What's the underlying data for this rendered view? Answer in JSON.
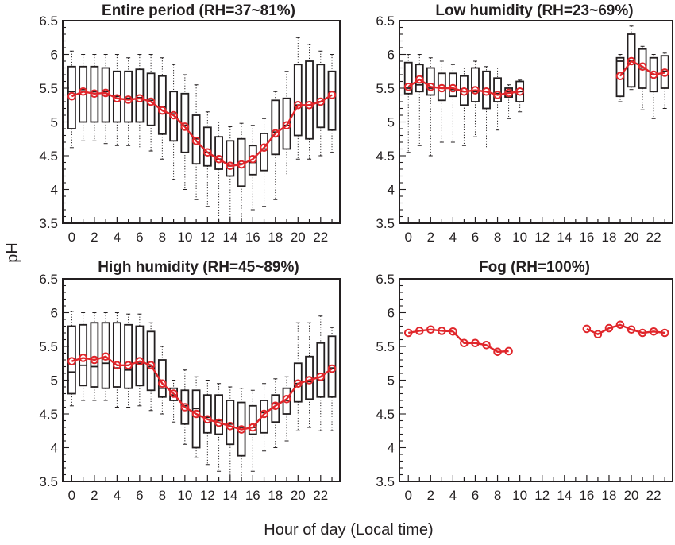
{
  "figure": {
    "ylabel": "pH",
    "xlabel": "Hour of day (Local time)"
  },
  "chart_data": [
    {
      "type": "box",
      "title": "Entire period (RH=37~81%)",
      "x_ticks": [
        "0",
        "2",
        "4",
        "6",
        "8",
        "10",
        "12",
        "14",
        "16",
        "18",
        "20",
        "22"
      ],
      "y_ticks": [
        "3.5",
        "4",
        "4.5",
        "5",
        "5.5",
        "6",
        "6.5"
      ],
      "xlim": [
        -0.8,
        23.7
      ],
      "ylim": [
        3.5,
        6.5
      ],
      "hours": [
        0,
        1,
        2,
        3,
        4,
        5,
        6,
        7,
        8,
        9,
        10,
        11,
        12,
        13,
        14,
        15,
        16,
        17,
        18,
        19,
        20,
        21,
        22,
        23
      ],
      "mean": [
        5.38,
        5.45,
        5.42,
        5.43,
        5.35,
        5.33,
        5.35,
        5.3,
        5.17,
        5.1,
        4.93,
        4.72,
        4.55,
        4.45,
        4.35,
        4.37,
        4.45,
        4.62,
        4.83,
        4.95,
        5.25,
        5.25,
        5.3,
        5.4
      ],
      "q1": [
        4.9,
        5.0,
        5.0,
        5.0,
        5.0,
        5.0,
        5.0,
        4.95,
        4.82,
        4.72,
        4.55,
        4.38,
        4.35,
        4.3,
        4.2,
        4.05,
        4.22,
        4.28,
        4.52,
        4.6,
        4.8,
        4.75,
        4.92,
        4.88
      ],
      "q3": [
        5.82,
        5.82,
        5.82,
        5.8,
        5.75,
        5.75,
        5.78,
        5.72,
        5.68,
        5.45,
        5.42,
        5.1,
        4.92,
        4.78,
        4.72,
        4.75,
        4.65,
        4.83,
        5.32,
        5.35,
        5.85,
        5.9,
        5.85,
        5.75
      ],
      "median": [
        5.45,
        5.48,
        5.45,
        5.45,
        5.38,
        5.35,
        5.36,
        5.32,
        5.22,
        5.12,
        4.95,
        4.75,
        4.55,
        4.45,
        4.35,
        4.38,
        4.4,
        4.6,
        4.85,
        4.95,
        5.25,
        5.25,
        5.3,
        5.45
      ],
      "whisker_low": [
        4.62,
        4.72,
        4.72,
        4.68,
        4.65,
        4.65,
        4.6,
        4.57,
        4.45,
        4.15,
        4.0,
        3.85,
        3.75,
        3.5,
        3.5,
        3.5,
        3.7,
        3.75,
        3.85,
        4.2,
        4.45,
        4.45,
        4.5,
        4.55
      ],
      "whisker_high": [
        6.05,
        6.0,
        6.0,
        6.0,
        6.0,
        5.95,
        6.0,
        6.0,
        5.95,
        5.85,
        5.7,
        5.55,
        5.15,
        5.0,
        4.93,
        4.98,
        4.95,
        5.05,
        5.45,
        5.75,
        6.25,
        6.15,
        6.05,
        6.0
      ]
    },
    {
      "type": "box",
      "title": "Low humidity (RH=23~69%)",
      "x_ticks": [
        "0",
        "2",
        "4",
        "6",
        "8",
        "10",
        "12",
        "14",
        "16",
        "18",
        "20",
        "22"
      ],
      "y_ticks": [
        "3.5",
        "4",
        "4.5",
        "5",
        "5.5",
        "6",
        "6.5"
      ],
      "xlim": [
        -0.8,
        23.7
      ],
      "ylim": [
        3.5,
        6.5
      ],
      "hours": [
        0,
        1,
        2,
        3,
        4,
        5,
        6,
        7,
        8,
        9,
        10,
        19,
        20,
        21,
        22,
        23
      ],
      "mean": [
        5.52,
        5.63,
        5.52,
        5.5,
        5.5,
        5.45,
        5.47,
        5.45,
        5.4,
        5.43,
        5.45,
        5.68,
        5.9,
        5.82,
        5.7,
        5.73
      ],
      "q1": [
        5.42,
        5.45,
        5.4,
        5.32,
        5.38,
        5.25,
        5.3,
        5.2,
        5.3,
        5.37,
        5.3,
        5.38,
        5.52,
        5.5,
        5.45,
        5.5
      ],
      "q3": [
        5.88,
        5.85,
        5.8,
        5.72,
        5.72,
        5.68,
        5.8,
        5.75,
        5.65,
        5.5,
        5.6,
        5.95,
        6.3,
        6.08,
        5.95,
        5.98
      ],
      "median": [
        5.5,
        5.55,
        5.5,
        5.5,
        5.48,
        5.45,
        5.45,
        5.45,
        5.42,
        5.45,
        5.45,
        5.9,
        5.9,
        5.8,
        5.7,
        5.75
      ],
      "whisker_low": [
        4.55,
        4.65,
        4.5,
        4.7,
        4.7,
        4.65,
        4.78,
        4.6,
        4.88,
        5.05,
        5.15,
        5.3,
        5.48,
        5.18,
        5.05,
        5.2
      ],
      "whisker_high": [
        6.0,
        6.0,
        5.95,
        5.9,
        5.85,
        5.8,
        5.9,
        5.82,
        5.8,
        5.55,
        5.62,
        6.0,
        6.42,
        6.12,
        6.0,
        6.02
      ]
    },
    {
      "type": "box",
      "title": "High humidity (RH=45~89%)",
      "x_ticks": [
        "0",
        "2",
        "4",
        "6",
        "8",
        "10",
        "12",
        "14",
        "16",
        "18",
        "20",
        "22"
      ],
      "y_ticks": [
        "3.5",
        "4",
        "4.5",
        "5",
        "5.5",
        "6",
        "6.5"
      ],
      "xlim": [
        -0.8,
        23.7
      ],
      "ylim": [
        3.5,
        6.5
      ],
      "hours": [
        0,
        1,
        2,
        3,
        4,
        5,
        6,
        7,
        8,
        9,
        10,
        11,
        12,
        13,
        14,
        15,
        16,
        17,
        18,
        19,
        20,
        21,
        22,
        23
      ],
      "mean": [
        5.28,
        5.33,
        5.3,
        5.35,
        5.22,
        5.22,
        5.28,
        5.22,
        4.95,
        4.8,
        4.6,
        4.5,
        4.42,
        4.37,
        4.32,
        4.27,
        4.3,
        4.5,
        4.62,
        4.72,
        4.95,
        5.0,
        5.05,
        5.17
      ],
      "q1": [
        4.8,
        4.92,
        4.9,
        4.88,
        4.9,
        4.88,
        4.92,
        4.85,
        4.75,
        4.7,
        4.35,
        4.0,
        4.22,
        4.2,
        4.05,
        3.88,
        4.2,
        4.22,
        4.38,
        4.5,
        4.68,
        4.72,
        4.75,
        4.75
      ],
      "q3": [
        5.8,
        5.82,
        5.85,
        5.85,
        5.85,
        5.82,
        5.8,
        5.72,
        5.3,
        4.88,
        4.85,
        4.85,
        4.78,
        4.78,
        4.7,
        4.67,
        4.62,
        4.7,
        4.78,
        4.88,
        5.25,
        5.35,
        5.55,
        5.65
      ],
      "median": [
        5.12,
        5.22,
        5.2,
        5.25,
        5.18,
        5.15,
        5.25,
        5.2,
        4.88,
        4.78,
        4.62,
        4.58,
        4.45,
        4.4,
        4.35,
        4.3,
        4.3,
        4.52,
        4.65,
        4.7,
        4.95,
        4.98,
        5.0,
        5.18
      ],
      "whisker_low": [
        4.62,
        4.7,
        4.7,
        4.7,
        4.6,
        4.6,
        4.62,
        4.55,
        4.5,
        4.38,
        4.05,
        3.85,
        3.75,
        3.65,
        3.5,
        3.5,
        3.65,
        3.95,
        4.0,
        4.1,
        4.25,
        4.3,
        4.25,
        4.25
      ],
      "whisker_high": [
        6.02,
        6.0,
        6.0,
        6.0,
        6.0,
        5.98,
        5.98,
        5.85,
        5.5,
        5.0,
        5.15,
        5.05,
        5.0,
        4.95,
        4.9,
        4.88,
        4.85,
        4.95,
        5.02,
        5.05,
        5.85,
        5.85,
        5.95,
        5.78
      ]
    },
    {
      "type": "line",
      "title": "Fog (RH=100%)",
      "x_ticks": [
        "0",
        "2",
        "4",
        "6",
        "8",
        "10",
        "12",
        "14",
        "16",
        "18",
        "20",
        "22"
      ],
      "y_ticks": [
        "3.5",
        "4",
        "4.5",
        "5",
        "5.5",
        "6",
        "6.5"
      ],
      "xlim": [
        -0.8,
        23.7
      ],
      "ylim": [
        3.5,
        6.5
      ],
      "hours": [
        0,
        1,
        2,
        3,
        4,
        5,
        6,
        7,
        8,
        9,
        16,
        17,
        18,
        19,
        20,
        21,
        22,
        23
      ],
      "mean": [
        5.7,
        5.73,
        5.75,
        5.73,
        5.72,
        5.55,
        5.55,
        5.52,
        5.42,
        5.43,
        5.76,
        5.68,
        5.77,
        5.82,
        5.75,
        5.7,
        5.72,
        5.7
      ]
    }
  ]
}
